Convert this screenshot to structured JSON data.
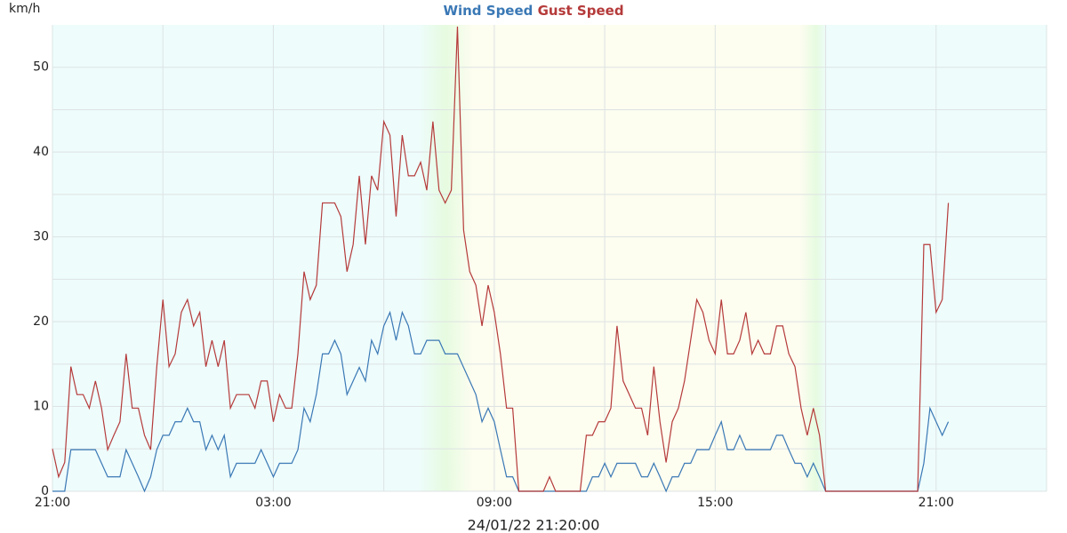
{
  "chart_data": {
    "type": "line",
    "y_label": "km/h",
    "timestamp": "24/01/22 21:20:00",
    "x": [
      0,
      10,
      20,
      30,
      40,
      50,
      60,
      70,
      80,
      90,
      100,
      110,
      120,
      130,
      140,
      150,
      160,
      170,
      180,
      190,
      200,
      210,
      220,
      230,
      240,
      250,
      260,
      270,
      280,
      290,
      300,
      310,
      320,
      330,
      340,
      350,
      360,
      370,
      380,
      390,
      400,
      410,
      420,
      430,
      440,
      450,
      460,
      470,
      480,
      490,
      500,
      510,
      520,
      530,
      540,
      550,
      560,
      570,
      580,
      590,
      600,
      610,
      620,
      630,
      640,
      650,
      660,
      670,
      680,
      690,
      700,
      710,
      720,
      730,
      740,
      750,
      760,
      770,
      780,
      790,
      800,
      810,
      820,
      830,
      840,
      850,
      860,
      870,
      880,
      890,
      900,
      910,
      920,
      930,
      940,
      950,
      960,
      970,
      980,
      990,
      1000,
      1010,
      1020,
      1030,
      1040,
      1050,
      1060,
      1070,
      1080,
      1090,
      1100,
      1110,
      1120,
      1130,
      1140,
      1150,
      1160,
      1170,
      1180,
      1190,
      1200,
      1210,
      1220,
      1230,
      1240,
      1250,
      1260,
      1270,
      1280,
      1290,
      1300,
      1310,
      1320,
      1330,
      1340,
      1350,
      1360,
      1370,
      1380,
      1390,
      1400,
      1410,
      1420,
      1430,
      1440,
      1450,
      1460
    ],
    "series": [
      {
        "name": "Wind Speed",
        "color": "#3a78b5",
        "values": [
          0,
          0,
          0,
          4.9,
          4.9,
          4.9,
          4.9,
          4.9,
          3.3,
          1.7,
          1.7,
          1.7,
          4.9,
          3.3,
          1.7,
          0,
          1.7,
          4.9,
          6.6,
          6.6,
          8.2,
          8.2,
          9.8,
          8.2,
          8.2,
          4.9,
          6.6,
          4.9,
          6.6,
          1.7,
          3.3,
          3.3,
          3.3,
          3.3,
          4.9,
          3.3,
          1.7,
          3.3,
          3.3,
          3.3,
          4.9,
          9.8,
          8.2,
          11.4,
          16.2,
          16.2,
          17.8,
          16.2,
          11.4,
          13.0,
          14.6,
          13.0,
          17.8,
          16.2,
          19.5,
          21.1,
          17.8,
          21.1,
          19.5,
          16.2,
          16.2,
          17.8,
          17.8,
          17.8,
          16.2,
          16.2,
          16.2,
          14.6,
          13.0,
          11.4,
          8.2,
          9.8,
          8.2,
          4.9,
          1.7,
          1.7,
          0,
          0,
          0,
          0,
          0,
          0,
          0,
          0,
          0,
          0,
          0,
          0,
          1.7,
          1.7,
          3.3,
          1.7,
          3.3,
          3.3,
          3.3,
          3.3,
          1.7,
          1.7,
          3.3,
          1.7,
          0,
          1.7,
          1.7,
          3.3,
          3.3,
          4.9,
          4.9,
          4.9,
          6.6,
          8.2,
          4.9,
          4.9,
          6.6,
          4.9,
          4.9,
          4.9,
          4.9,
          4.9,
          6.6,
          6.6,
          4.9,
          3.3,
          3.3,
          1.7,
          3.3,
          1.7,
          0,
          0,
          0,
          0,
          0,
          0,
          0,
          0,
          0,
          0,
          0,
          0,
          0,
          0,
          0,
          0,
          3.3,
          9.8,
          8.2,
          6.6,
          8.2
        ]
      },
      {
        "name": "Gust Speed",
        "color": "#b53a3a",
        "values": [
          5.0,
          1.7,
          3.4,
          14.7,
          11.4,
          11.4,
          9.8,
          13.0,
          9.8,
          4.9,
          6.6,
          8.2,
          16.2,
          9.8,
          9.8,
          6.6,
          4.9,
          14.7,
          22.6,
          14.7,
          16.2,
          21.1,
          22.6,
          19.5,
          21.1,
          14.7,
          17.8,
          14.7,
          17.8,
          9.8,
          11.4,
          11.4,
          11.4,
          9.8,
          13.0,
          13.0,
          8.2,
          11.4,
          9.8,
          9.8,
          16.2,
          25.9,
          22.6,
          24.3,
          34.0,
          34.0,
          34.0,
          32.4,
          25.9,
          29.1,
          37.2,
          29.1,
          37.2,
          35.5,
          43.6,
          42.0,
          32.4,
          42.0,
          37.2,
          37.2,
          38.8,
          35.5,
          43.6,
          35.5,
          34.0,
          35.5,
          54.8,
          30.8,
          25.9,
          24.3,
          19.5,
          24.3,
          21.1,
          16.2,
          9.8,
          9.8,
          0,
          0,
          0,
          0,
          0,
          1.7,
          0,
          0,
          0,
          0,
          0,
          6.6,
          6.6,
          8.2,
          8.2,
          9.8,
          19.5,
          13.0,
          11.4,
          9.8,
          9.8,
          6.6,
          14.7,
          8.2,
          3.4,
          8.2,
          9.8,
          13.0,
          17.8,
          22.6,
          21.1,
          17.8,
          16.2,
          22.6,
          16.2,
          16.2,
          17.8,
          21.1,
          16.2,
          17.8,
          16.2,
          16.2,
          19.5,
          19.5,
          16.2,
          14.7,
          9.8,
          6.6,
          9.8,
          6.6,
          0,
          0,
          0,
          0,
          0,
          0,
          0,
          0,
          0,
          0,
          0,
          0,
          0,
          0,
          0,
          0,
          29.1,
          29.1,
          21.1,
          22.6,
          34.0
        ]
      }
    ],
    "xlim": [
      0,
      1620
    ],
    "xticks": [
      {
        "value": 0,
        "label": "21:00"
      },
      {
        "value": 360,
        "label": "03:00"
      },
      {
        "value": 720,
        "label": "09:00"
      },
      {
        "value": 1080,
        "label": "15:00"
      },
      {
        "value": 1440,
        "label": "21:00"
      }
    ],
    "x_minor_ticks": [
      180,
      540,
      900,
      1260,
      1620
    ],
    "ylim": [
      0,
      55
    ],
    "yticks": [
      0,
      10,
      20,
      30,
      40,
      50
    ],
    "y_minor_ticks": [
      5,
      15,
      25,
      35,
      45
    ],
    "grid": true
  }
}
